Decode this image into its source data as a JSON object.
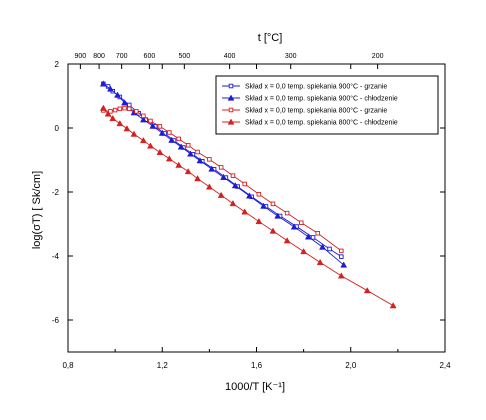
{
  "chart_data": {
    "type": "scatter",
    "xlabel": "1000/T [K⁻¹]",
    "ylabel": "log(σT) [ Sk/cm]",
    "top_xlabel": "t [°C]",
    "xlim": [
      0.8,
      2.4
    ],
    "ylim": [
      -7,
      2
    ],
    "x_ticks": [
      0.8,
      1.2,
      1.6,
      2.0,
      2.4
    ],
    "x_tick_labels": [
      "0,8",
      "1,2",
      "1,6",
      "2,0",
      "2,4"
    ],
    "y_ticks": [
      2,
      0,
      -2,
      -4,
      -6
    ],
    "y_tick_labels": [
      "2",
      "0",
      "-2",
      "-4",
      "-6"
    ],
    "top_ticks_c": [
      900,
      800,
      700,
      600,
      500,
      400,
      300,
      200
    ],
    "top_tick_labels": [
      "900",
      "800",
      "700",
      "600",
      "500",
      "400",
      "300",
      "200"
    ],
    "legend_position": "top-right",
    "series": [
      {
        "name": "Skład x = 0,0 temp. spiekania 900°C - grzanie",
        "color": "#1c1cd6",
        "marker": "square-open",
        "x": [
          0.95,
          0.97,
          0.99,
          1.02,
          1.06,
          1.1,
          1.13,
          1.17,
          1.21,
          1.25,
          1.29,
          1.33,
          1.37,
          1.42,
          1.47,
          1.52,
          1.58,
          1.64,
          1.7,
          1.77,
          1.84,
          1.91,
          1.96
        ],
        "y": [
          1.38,
          1.3,
          1.15,
          0.97,
          0.72,
          0.46,
          0.26,
          0.05,
          -0.17,
          -0.39,
          -0.61,
          -0.82,
          -1.04,
          -1.29,
          -1.55,
          -1.83,
          -2.15,
          -2.45,
          -2.75,
          -3.08,
          -3.42,
          -3.78,
          -4.02
        ]
      },
      {
        "name": "Skład x = 0,0 temp. spiekania 900°C - chłodzenie",
        "color": "#1c1cd6",
        "marker": "triangle-filled",
        "x": [
          0.95,
          0.98,
          1.01,
          1.04,
          1.08,
          1.12,
          1.16,
          1.2,
          1.24,
          1.28,
          1.32,
          1.36,
          1.41,
          1.46,
          1.51,
          1.57,
          1.63,
          1.69,
          1.76,
          1.82,
          1.88,
          1.97
        ],
        "y": [
          1.38,
          1.22,
          1.03,
          0.79,
          0.48,
          0.26,
          0.06,
          -0.16,
          -0.38,
          -0.59,
          -0.81,
          -1.02,
          -1.28,
          -1.54,
          -1.8,
          -2.12,
          -2.44,
          -2.75,
          -3.09,
          -3.4,
          -3.72,
          -4.28
        ]
      },
      {
        "name": "Skład x = 0,0 temp. spiekania 800°C - grzanie",
        "color": "#d42020",
        "marker": "square-open",
        "x": [
          0.95,
          0.98,
          1.0,
          1.02,
          1.04,
          1.06,
          1.09,
          1.12,
          1.15,
          1.19,
          1.23,
          1.27,
          1.31,
          1.35,
          1.4,
          1.45,
          1.5,
          1.55,
          1.61,
          1.67,
          1.73,
          1.79,
          1.86,
          1.96
        ],
        "y": [
          0.55,
          0.52,
          0.56,
          0.6,
          0.62,
          0.6,
          0.52,
          0.38,
          0.22,
          0.05,
          -0.14,
          -0.34,
          -0.54,
          -0.75,
          -0.98,
          -1.23,
          -1.49,
          -1.75,
          -2.07,
          -2.37,
          -2.66,
          -2.96,
          -3.29,
          -3.84
        ]
      },
      {
        "name": "Skład x = 0,0 temp. spiekania 800°C - chłodzenie",
        "color": "#d42020",
        "marker": "triangle-filled",
        "x": [
          0.95,
          0.97,
          0.99,
          1.02,
          1.05,
          1.08,
          1.12,
          1.15,
          1.19,
          1.23,
          1.27,
          1.31,
          1.35,
          1.4,
          1.45,
          1.5,
          1.55,
          1.61,
          1.67,
          1.73,
          1.8,
          1.87,
          1.96,
          2.07,
          2.18
        ],
        "y": [
          0.62,
          0.44,
          0.3,
          0.14,
          -0.02,
          -0.19,
          -0.39,
          -0.56,
          -0.76,
          -0.96,
          -1.16,
          -1.36,
          -1.58,
          -1.84,
          -2.1,
          -2.36,
          -2.62,
          -2.92,
          -3.22,
          -3.52,
          -3.86,
          -4.2,
          -4.62,
          -5.08,
          -5.55
        ]
      }
    ]
  }
}
